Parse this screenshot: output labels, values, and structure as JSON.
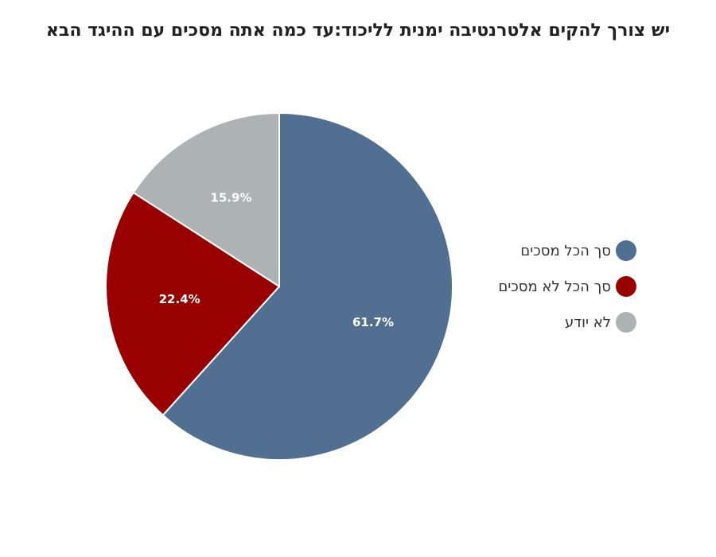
{
  "chart_data": {
    "type": "pie",
    "title": "יש צורך להקים אלטרנטיבה ימנית לליכוד:עד כמה אתה מסכים עם ההיגד הבא",
    "categories": [
      "סך הכל מסכים",
      "סך הכל לא מסכים",
      "לא יודע"
    ],
    "values": [
      61.7,
      22.4,
      15.9
    ],
    "data_labels": [
      "61.7%",
      "22.4%",
      "15.9%"
    ],
    "colors": [
      "#516f90",
      "#990000",
      "#adb2b3"
    ],
    "legend_position": "right",
    "start_angle": "top",
    "direction": "clockwise"
  }
}
